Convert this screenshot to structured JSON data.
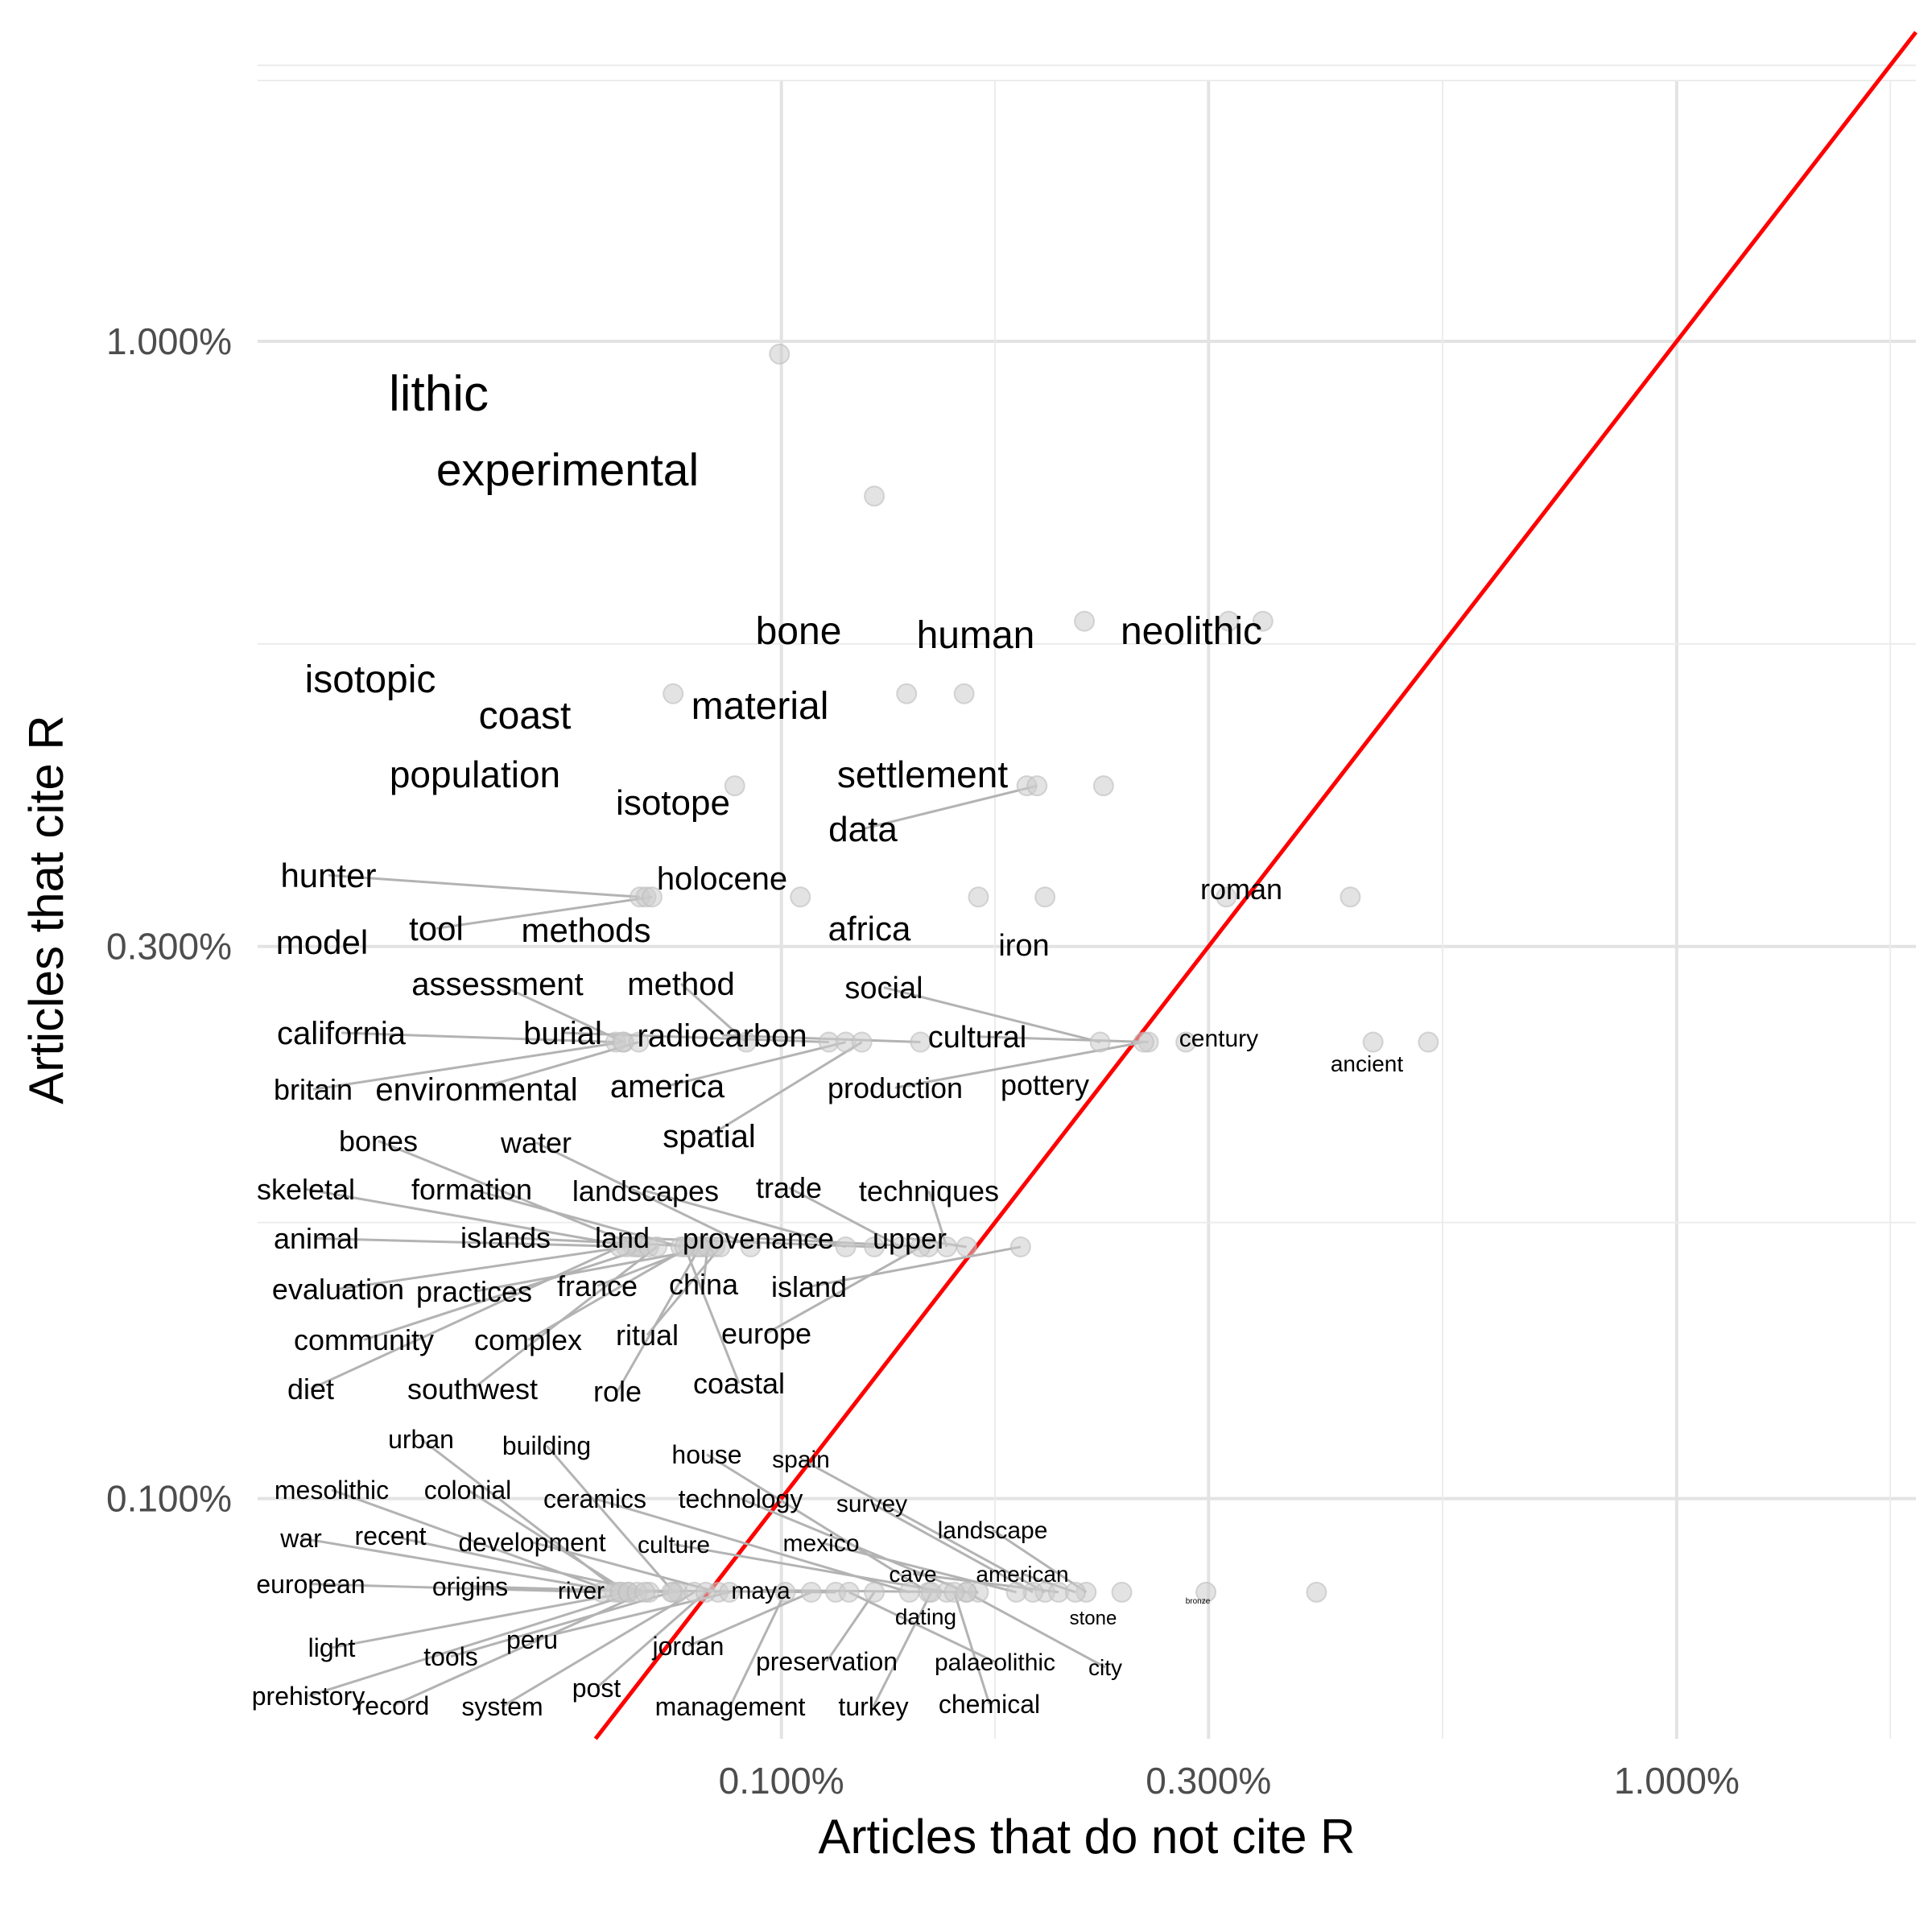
{
  "chart_data": {
    "type": "scatter",
    "xlabel": "Articles that do not cite R",
    "ylabel": "Articles that cite R",
    "scale": "log10",
    "xlim": [
      0.00026,
      0.0185
    ],
    "ylim": [
      0.00062,
      0.0185
    ],
    "x_ticks": [
      {
        "value": 0.001,
        "label": "0.100%"
      },
      {
        "value": 0.003,
        "label": "0.300%"
      },
      {
        "value": 0.01,
        "label": "1.000%"
      }
    ],
    "y_ticks": [
      {
        "value": 0.001,
        "label": "0.100%"
      },
      {
        "value": 0.003,
        "label": "0.300%"
      },
      {
        "value": 0.01,
        "label": "1.000%"
      }
    ],
    "reference_line": {
      "type": "y = x",
      "color": "#ff0000"
    },
    "point_color": "#cccccc",
    "label_color": "#000000",
    "leader_color": "#b3b3b3",
    "grid": true,
    "points": [
      {
        "word": "lithic",
        "x": 0.000995,
        "y": 0.00975
      },
      {
        "word": "experimental",
        "x": 0.00127,
        "y": 0.00735
      },
      {
        "word": "bone",
        "x": 0.00218,
        "y": 0.00573
      },
      {
        "word": "human",
        "x": 0.00316,
        "y": 0.00573
      },
      {
        "word": "neolithic",
        "x": 0.00345,
        "y": 0.00573
      },
      {
        "word": "isotopic",
        "x": 0.000757,
        "y": 0.00496
      },
      {
        "word": "coast",
        "x": 0.00138,
        "y": 0.00496
      },
      {
        "word": "material",
        "x": 0.0016,
        "y": 0.00496
      },
      {
        "word": "population",
        "x": 0.000887,
        "y": 0.00413
      },
      {
        "word": "isotope",
        "x": 0.00188,
        "y": 0.00413
      },
      {
        "word": "settlement",
        "x": 0.00229,
        "y": 0.00413
      },
      {
        "word": "data",
        "x": 0.00193,
        "y": 0.00413
      },
      {
        "word": "hunter",
        "x": 0.000695,
        "y": 0.00331
      },
      {
        "word": "model",
        "x": 0.000706,
        "y": 0.00331
      },
      {
        "word": "tool",
        "x": 0.000717,
        "y": 0.00331
      },
      {
        "word": "methods",
        "x": 0.00105,
        "y": 0.00331
      },
      {
        "word": "holocene",
        "x": 0.00166,
        "y": 0.00331
      },
      {
        "word": "africa",
        "x": 0.00197,
        "y": 0.00331
      },
      {
        "word": "iron",
        "x": 0.00314,
        "y": 0.00331
      },
      {
        "word": "roman",
        "x": 0.00432,
        "y": 0.00331
      },
      {
        "word": "assessment",
        "x": 0.000667,
        "y": 0.00248
      },
      {
        "word": "method",
        "x": 0.000914,
        "y": 0.00248
      },
      {
        "word": "california",
        "x": 0.000653,
        "y": 0.00248
      },
      {
        "word": "burial",
        "x": 0.00113,
        "y": 0.00248
      },
      {
        "word": "radiocarbon",
        "x": 0.00143,
        "y": 0.00248
      },
      {
        "word": "social",
        "x": 0.00227,
        "y": 0.00248
      },
      {
        "word": "cultural",
        "x": 0.00257,
        "y": 0.00248
      },
      {
        "word": "century",
        "x": 0.00458,
        "y": 0.00248
      },
      {
        "word": "ancient",
        "x": 0.00528,
        "y": 0.00248
      },
      {
        "word": "britain",
        "x": 0.000665,
        "y": 0.00248
      },
      {
        "word": "environmental",
        "x": 0.000693,
        "y": 0.00248
      },
      {
        "word": "america",
        "x": 0.00118,
        "y": 0.00248
      },
      {
        "word": "production",
        "x": 0.00254,
        "y": 0.00248
      },
      {
        "word": "pottery",
        "x": 0.00283,
        "y": 0.00248
      },
      {
        "word": "spatial",
        "x": 0.00123,
        "y": 0.00248
      },
      {
        "word": "bones",
        "x": 0.000695,
        "y": 0.00165
      },
      {
        "word": "water",
        "x": 0.000924,
        "y": 0.00165
      },
      {
        "word": "skeletal",
        "x": 0.000683,
        "y": 0.00165
      },
      {
        "word": "formation",
        "x": 0.000772,
        "y": 0.00165
      },
      {
        "word": "landscapes",
        "x": 0.00118,
        "y": 0.00165
      },
      {
        "word": "trade",
        "x": 0.00136,
        "y": 0.00165
      },
      {
        "word": "techniques",
        "x": 0.00153,
        "y": 0.00165
      },
      {
        "word": "animal",
        "x": 0.00069,
        "y": 0.00165
      },
      {
        "word": "islands",
        "x": 0.00082,
        "y": 0.00165
      },
      {
        "word": "land",
        "x": 0.00127,
        "y": 0.00165
      },
      {
        "word": "provenance",
        "x": 0.00146,
        "y": 0.00165
      },
      {
        "word": "upper",
        "x": 0.00161,
        "y": 0.00165
      },
      {
        "word": "evaluation",
        "x": 0.000671,
        "y": 0.00165
      },
      {
        "word": "practices",
        "x": 0.000843,
        "y": 0.00165
      },
      {
        "word": "france",
        "x": 0.000805,
        "y": 0.00165
      },
      {
        "word": "china",
        "x": 0.000827,
        "y": 0.00165
      },
      {
        "word": "island",
        "x": 0.00185,
        "y": 0.00165
      },
      {
        "word": "community",
        "x": 0.000711,
        "y": 0.00165
      },
      {
        "word": "complex",
        "x": 0.000789,
        "y": 0.00165
      },
      {
        "word": "ritual",
        "x": 0.000855,
        "y": 0.00165
      },
      {
        "word": "europe",
        "x": 0.00143,
        "y": 0.00165
      },
      {
        "word": "diet",
        "x": 0.00066,
        "y": 0.00165
      },
      {
        "word": "southwest",
        "x": 0.000726,
        "y": 0.00165
      },
      {
        "word": "role",
        "x": 0.000811,
        "y": 0.00165
      },
      {
        "word": "coastal",
        "x": 0.00078,
        "y": 0.00165
      },
      {
        "word": "urban",
        "x": 0.000662,
        "y": 0.00083
      },
      {
        "word": "building",
        "x": 0.000758,
        "y": 0.00083
      },
      {
        "word": "house",
        "x": 0.00146,
        "y": 0.00083
      },
      {
        "word": "spain",
        "x": 0.00197,
        "y": 0.00083
      },
      {
        "word": "mesolithic",
        "x": 0.000651,
        "y": 0.00083
      },
      {
        "word": "colonial",
        "x": 0.000674,
        "y": 0.00083
      },
      {
        "word": "ceramics",
        "x": 0.00139,
        "y": 0.00083
      },
      {
        "word": "technology",
        "x": 0.00161,
        "y": 0.00083
      },
      {
        "word": "survey",
        "x": 0.00191,
        "y": 0.00083
      },
      {
        "word": "war",
        "x": 0.00066,
        "y": 0.00083
      },
      {
        "word": "recent",
        "x": 0.000712,
        "y": 0.00083
      },
      {
        "word": "development",
        "x": 0.00085,
        "y": 0.00083
      },
      {
        "word": "culture",
        "x": 0.00153,
        "y": 0.00083
      },
      {
        "word": "mexico",
        "x": 0.00183,
        "y": 0.00083
      },
      {
        "word": "landscape",
        "x": 0.00219,
        "y": 0.00083
      },
      {
        "word": "european",
        "x": 0.00063,
        "y": 0.00083
      },
      {
        "word": "origins",
        "x": 0.000766,
        "y": 0.00083
      },
      {
        "word": "river",
        "x": 0.00115,
        "y": 0.00083
      },
      {
        "word": "maya",
        "x": 0.00166,
        "y": 0.00083
      },
      {
        "word": "cave",
        "x": 0.00204,
        "y": 0.00083
      },
      {
        "word": "american",
        "x": 0.00213,
        "y": 0.00083
      },
      {
        "word": "dating",
        "x": 0.0024,
        "y": 0.00083
      },
      {
        "word": "stone",
        "x": 0.00298,
        "y": 0.00083
      },
      {
        "word": "bronze",
        "x": 0.00396,
        "y": 0.00083
      },
      {
        "word": "light",
        "x": 0.000675,
        "y": 0.00083
      },
      {
        "word": "peru",
        "x": 0.000875,
        "y": 0.00083
      },
      {
        "word": "jordan",
        "x": 0.00108,
        "y": 0.00083
      },
      {
        "word": "tools",
        "x": 0.000754,
        "y": 0.00083
      },
      {
        "word": "preservation",
        "x": 0.00127,
        "y": 0.00083
      },
      {
        "word": "palaeolithic",
        "x": 0.00119,
        "y": 0.00083
      },
      {
        "word": "city",
        "x": 0.00161,
        "y": 0.00083
      },
      {
        "word": "prehistory",
        "x": 0.00069,
        "y": 0.00083
      },
      {
        "word": "record",
        "x": 0.000704,
        "y": 0.00083
      },
      {
        "word": "system",
        "x": 0.000799,
        "y": 0.00083
      },
      {
        "word": "post",
        "x": 0.000823,
        "y": 0.00083
      },
      {
        "word": "management",
        "x": 0.00101,
        "y": 0.00083
      },
      {
        "word": "turkey",
        "x": 0.00147,
        "y": 0.00083
      },
      {
        "word": "chemical",
        "x": 0.00156,
        "y": 0.00083
      }
    ]
  }
}
